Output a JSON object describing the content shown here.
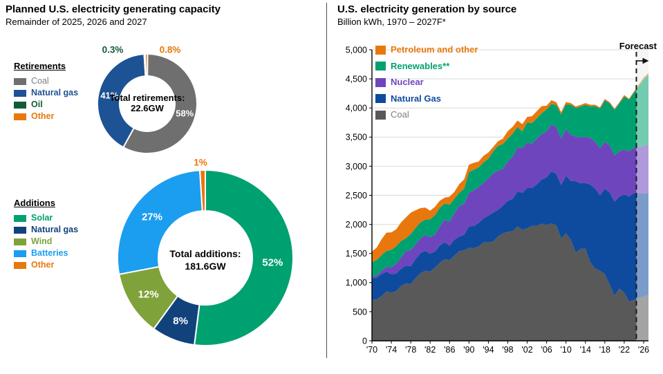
{
  "left_panel": {
    "title": "Planned U.S. electricity generating capacity",
    "subtitle": "Remainder of 2025, 2026 and 2027"
  },
  "right_panel": {
    "title": "U.S. electricity generation by source",
    "subtitle": "Billion kWh, 1970 – 2027F*",
    "forecast_label": "Forecast"
  },
  "chart_data": [
    {
      "id": "retirements",
      "type": "pie",
      "title": "Retirements",
      "center_label": [
        "Total retirements:",
        "22.6GW"
      ],
      "units": "percent of total retirements",
      "slices": [
        {
          "label": "Coal",
          "value": 58,
          "display": "58%",
          "color": "#6F6F6F",
          "legend_text_color": "#7F7F7F",
          "legend_bold": false,
          "inside": true
        },
        {
          "label": "Natural gas",
          "value": 41,
          "display": "41%",
          "color": "#1D5294",
          "legend_text_color": "#1D5294",
          "legend_bold": true,
          "inside": true
        },
        {
          "label": "Oil",
          "value": 0.3,
          "display": "0.3%",
          "color": "#135B36",
          "legend_text_color": "#135B36",
          "legend_bold": true,
          "inside": false
        },
        {
          "label": "Other",
          "value": 0.8,
          "display": "0.8%",
          "color": "#E8780D",
          "legend_text_color": "#E8780D",
          "legend_bold": true,
          "inside": false
        }
      ],
      "outside_labels": [
        {
          "text": "0.3%",
          "x": 163,
          "y": 72,
          "color": "#135B36"
        },
        {
          "text": "0.8%",
          "x": 246,
          "y": 72,
          "color": "#E8780D"
        }
      ]
    },
    {
      "id": "additions",
      "type": "pie",
      "title": "Additions",
      "center_label": [
        "Total additions:",
        "181.6GW"
      ],
      "units": "percent of total additions",
      "slices": [
        {
          "label": "Solar",
          "value": 52,
          "display": "52%",
          "color": "#00A170",
          "legend_text_color": "#00A170",
          "legend_bold": true,
          "inside": true
        },
        {
          "label": "Natural gas",
          "value": 8,
          "display": "8%",
          "color": "#12427C",
          "legend_text_color": "#12427C",
          "legend_bold": true,
          "inside": true
        },
        {
          "label": "Wind",
          "value": 12,
          "display": "12%",
          "color": "#7FA23A",
          "legend_text_color": "#7FA23A",
          "legend_bold": true,
          "inside": true
        },
        {
          "label": "Batteries",
          "value": 27,
          "display": "27%",
          "color": "#1B9DF0",
          "legend_text_color": "#1B9DF0",
          "legend_bold": true,
          "inside": true
        },
        {
          "label": "Other",
          "value": 1,
          "display": "1%",
          "color": "#E8780D",
          "legend_text_color": "#E8780D",
          "legend_bold": true,
          "inside": false
        }
      ],
      "outside_labels": [
        {
          "text": "1%",
          "x": 290,
          "y": 235,
          "color": "#E8780D"
        }
      ]
    },
    {
      "id": "generation",
      "type": "area",
      "stacked": true,
      "title": "U.S. electricity generation by source",
      "ylabel": "Billion kWh",
      "x_start": 1970,
      "x_end": 2027,
      "ylim": [
        0,
        5000
      ],
      "grid": true,
      "legend_position": "top-left",
      "forecast_start": 2024.5,
      "ytick_labels": [
        "0",
        "500",
        "1,000",
        "1,500",
        "2,000",
        "2,500",
        "3,000",
        "3,500",
        "4,000",
        "4,500",
        "5,000"
      ],
      "xtick_years": [
        1970,
        1974,
        1978,
        1982,
        1986,
        1990,
        1994,
        1998,
        2002,
        2006,
        2010,
        2014,
        2018,
        2022,
        2026
      ],
      "xtick_labels": [
        "'70",
        "'74",
        "'78",
        "'82",
        "'86",
        "'90",
        "'94",
        "'98",
        "'02",
        "'06",
        "'10",
        "'14",
        "'18",
        "'22",
        "'26"
      ],
      "legend": [
        {
          "label": "Petroleum and other",
          "color": "#E8780D",
          "text_color": "#E8780D",
          "bold": true
        },
        {
          "label": "Renewables**",
          "color": "#00A170",
          "text_color": "#00A170",
          "bold": true
        },
        {
          "label": "Nuclear",
          "color": "#6F45BE",
          "text_color": "#6F45BE",
          "bold": true
        },
        {
          "label": "Natural Gas",
          "color": "#0E4B9E",
          "text_color": "#0E4B9E",
          "bold": true
        },
        {
          "label": "Coal",
          "color": "#595959",
          "text_color": "#7F7F7F",
          "bold": false
        }
      ],
      "series": [
        {
          "name": "Coal",
          "color": "#595959",
          "values": [
            704,
            713,
            771,
            848,
            828,
            853,
            944,
            985,
            976,
            1075,
            1162,
            1203,
            1192,
            1259,
            1342,
            1402,
            1386,
            1464,
            1541,
            1554,
            1594,
            1591,
            1621,
            1690,
            1691,
            1709,
            1795,
            1845,
            1874,
            1881,
            1966,
            1904,
            1933,
            1974,
            1978,
            2013,
            1991,
            2016,
            1986,
            1756,
            1847,
            1733,
            1514,
            1581,
            1582,
            1352,
            1239,
            1206,
            1146,
            966,
            774,
            898,
            828,
            675,
            700,
            730,
            760,
            790
          ]
        },
        {
          "name": "Natural Gas",
          "color": "#0E4B9E",
          "values": [
            373,
            374,
            376,
            341,
            320,
            300,
            295,
            306,
            305,
            329,
            346,
            346,
            305,
            274,
            297,
            292,
            249,
            273,
            253,
            267,
            373,
            382,
            404,
            415,
            460,
            496,
            455,
            479,
            531,
            556,
            601,
            639,
            691,
            650,
            710,
            761,
            816,
            897,
            883,
            921,
            988,
            1014,
            1228,
            1125,
            1127,
            1335,
            1379,
            1296,
            1468,
            1582,
            1617,
            1579,
            1689,
            1802,
            1840,
            1800,
            1770,
            1750
          ]
        },
        {
          "name": "Nuclear",
          "color": "#6F45BE",
          "values": [
            22,
            38,
            54,
            83,
            114,
            173,
            191,
            251,
            276,
            255,
            251,
            273,
            283,
            294,
            328,
            384,
            414,
            455,
            527,
            529,
            577,
            613,
            619,
            610,
            640,
            673,
            675,
            629,
            674,
            728,
            754,
            769,
            780,
            764,
            789,
            782,
            787,
            806,
            806,
            799,
            807,
            790,
            769,
            789,
            797,
            797,
            806,
            805,
            807,
            809,
            790,
            778,
            772,
            775,
            780,
            800,
            815,
            830
          ]
        },
        {
          "name": "Renewables**",
          "color": "#00A170",
          "values": [
            251,
            266,
            273,
            272,
            301,
            300,
            284,
            220,
            280,
            280,
            276,
            261,
            309,
            332,
            321,
            281,
            291,
            250,
            223,
            265,
            354,
            353,
            337,
            351,
            339,
            379,
            424,
            429,
            396,
            393,
            353,
            285,
            348,
            352,
            348,
            354,
            382,
            349,
            378,
            414,
            424,
            517,
            492,
            531,
            548,
            544,
            608,
            684,
            710,
            725,
            789,
            823,
            910,
            891,
            945,
            1050,
            1150,
            1200
          ]
        },
        {
          "name": "Petroleum and other",
          "color": "#E8780D",
          "values": [
            184,
            213,
            274,
            314,
            300,
            289,
            320,
            358,
            365,
            304,
            246,
            206,
            147,
            144,
            120,
            100,
            137,
            118,
            149,
            158,
            127,
            119,
            100,
            113,
            105,
            75,
            81,
            92,
            128,
            118,
            111,
            125,
            95,
            119,
            121,
            122,
            64,
            66,
            46,
            39,
            37,
            30,
            23,
            27,
            30,
            28,
            24,
            21,
            25,
            18,
            17,
            19,
            23,
            16,
            18,
            22,
            26,
            30
          ]
        }
      ]
    }
  ]
}
